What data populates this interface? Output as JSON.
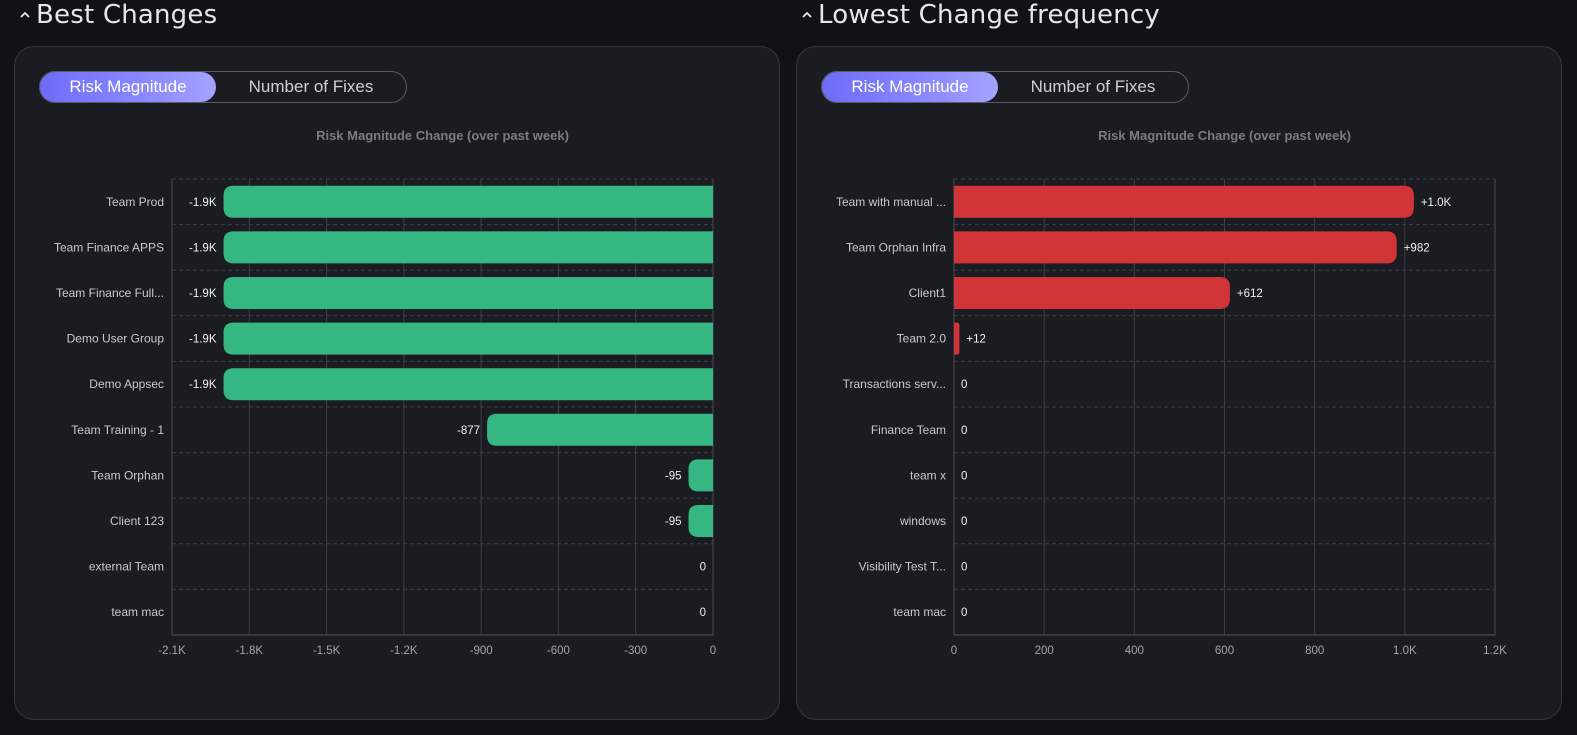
{
  "sections": [
    {
      "title": "Best Changes",
      "toggle": {
        "active": "Risk Magnitude",
        "inactive": "Number of Fixes"
      },
      "chart_data": {
        "type": "bar",
        "orientation": "horizontal",
        "title": "Risk Magnitude Change (over past week)",
        "categories": [
          "Team Prod",
          "Team Finance APPS",
          "Team Finance Full...",
          "Demo User Group",
          "Demo Appsec",
          "Team Training - 1",
          "Team Orphan",
          "Client 123",
          "external Team",
          "team mac"
        ],
        "values": [
          -1900,
          -1900,
          -1900,
          -1900,
          -1900,
          -877,
          -95,
          -95,
          0,
          0
        ],
        "value_labels": [
          "-1.9K",
          "-1.9K",
          "-1.9K",
          "-1.9K",
          "-1.9K",
          "-877",
          "-95",
          "-95",
          "0",
          "0"
        ],
        "xlim": [
          -2100,
          0
        ],
        "xticks": [
          -2100,
          -1800,
          -1500,
          -1200,
          -900,
          -600,
          -300,
          0
        ],
        "xtick_labels": [
          "-2.1K",
          "-1.8K",
          "-1.5K",
          "-1.2K",
          "-900",
          "-600",
          "-300",
          "0"
        ],
        "color": "#34b782",
        "grid": true
      }
    },
    {
      "title": "Lowest Change frequency",
      "toggle": {
        "active": "Risk Magnitude",
        "inactive": "Number of Fixes"
      },
      "chart_data": {
        "type": "bar",
        "orientation": "horizontal",
        "title": "Risk Magnitude Change (over past week)",
        "categories": [
          "Team with manual ...",
          "Team Orphan Infra",
          "Client1",
          "Team 2.0",
          "Transactions serv...",
          "Finance Team",
          "team x",
          "windows",
          "Visibility Test T...",
          "team mac"
        ],
        "values": [
          1020,
          982,
          612,
          12,
          0,
          0,
          0,
          0,
          0,
          0
        ],
        "value_labels": [
          "+1.0K",
          "+982",
          "+612",
          "+12",
          "0",
          "0",
          "0",
          "0",
          "0",
          "0"
        ],
        "xlim": [
          0,
          1200
        ],
        "xticks": [
          0,
          200,
          400,
          600,
          800,
          1000,
          1200
        ],
        "xtick_labels": [
          "0",
          "200",
          "400",
          "600",
          "800",
          "1.0K",
          "1.2K"
        ],
        "color": "#d13437",
        "grid": true
      }
    }
  ]
}
